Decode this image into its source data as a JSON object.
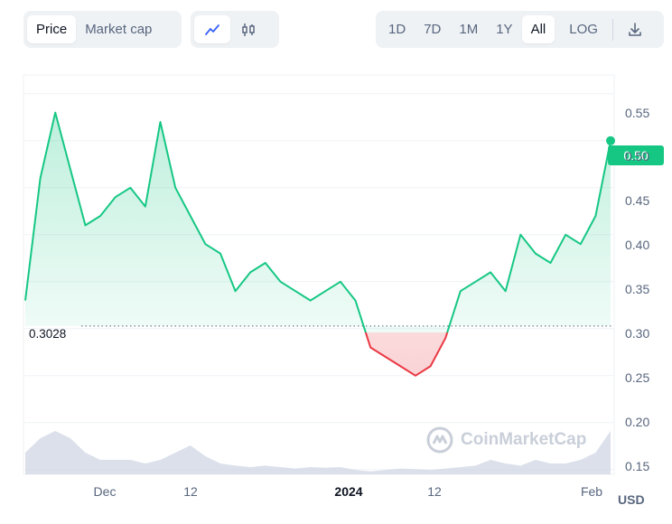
{
  "toolbar": {
    "metric_tabs": [
      "Price",
      "Market cap"
    ],
    "metric_active": "Price",
    "chart_type_icons": [
      "line-chart-icon",
      "candlestick-icon"
    ],
    "range_tabs": [
      "1D",
      "7D",
      "1M",
      "1Y",
      "All"
    ],
    "range_active": "All",
    "log_label": "LOG",
    "download_icon": "download-icon"
  },
  "colors": {
    "up": "#16c784",
    "down": "#ea3943",
    "volume": "#cfd6e4",
    "grid": "#eff2f5",
    "text": "#58667e"
  },
  "chart_data": {
    "type": "area",
    "series_price": {
      "x": [
        "Nov 17",
        "Nov 19",
        "Nov 21",
        "Nov 23",
        "Nov 25",
        "Nov 27",
        "Nov 29",
        "Dec 1",
        "Dec 3",
        "Dec 5",
        "Dec 7",
        "Dec 9",
        "Dec 11",
        "Dec 13",
        "Dec 15",
        "Dec 17",
        "Dec 19",
        "Dec 21",
        "Dec 23",
        "Dec 25",
        "Dec 27",
        "Dec 29",
        "Dec 31",
        "Jan 2",
        "Jan 4",
        "Jan 6",
        "Jan 8",
        "Jan 10",
        "Jan 12",
        "Jan 14",
        "Jan 16",
        "Jan 18",
        "Jan 20",
        "Jan 22",
        "Jan 24",
        "Jan 26",
        "Jan 28",
        "Jan 30",
        "Feb 1",
        "Feb 3"
      ],
      "values": [
        0.33,
        0.46,
        0.53,
        0.47,
        0.41,
        0.42,
        0.44,
        0.45,
        0.43,
        0.52,
        0.45,
        0.42,
        0.39,
        0.38,
        0.34,
        0.36,
        0.37,
        0.35,
        0.34,
        0.33,
        0.34,
        0.35,
        0.33,
        0.28,
        0.27,
        0.26,
        0.25,
        0.26,
        0.29,
        0.34,
        0.35,
        0.36,
        0.34,
        0.4,
        0.38,
        0.37,
        0.4,
        0.39,
        0.42,
        0.5
      ]
    },
    "series_volume": {
      "values": [
        0.03,
        0.05,
        0.06,
        0.05,
        0.03,
        0.02,
        0.02,
        0.02,
        0.015,
        0.02,
        0.03,
        0.04,
        0.025,
        0.015,
        0.012,
        0.01,
        0.012,
        0.01,
        0.008,
        0.01,
        0.009,
        0.01,
        0.006,
        0.004,
        0.006,
        0.008,
        0.007,
        0.006,
        0.008,
        0.01,
        0.012,
        0.02,
        0.015,
        0.012,
        0.02,
        0.015,
        0.015,
        0.02,
        0.03,
        0.06
      ]
    },
    "reference_line": 0.3028,
    "ylim": [
      0.145,
      0.57
    ],
    "yticks": [
      "0.55",
      "0.50",
      "0.45",
      "0.40",
      "0.35",
      "0.30",
      "0.25",
      "0.20",
      "0.15"
    ],
    "xticks": [
      {
        "label": "Dec",
        "bold": false,
        "x": "Dec 1"
      },
      {
        "label": "12",
        "bold": false,
        "x": "Dec 12"
      },
      {
        "label": "2024",
        "bold": true,
        "x": "Jan 1"
      },
      {
        "label": "12",
        "bold": false,
        "x": "Jan 12"
      },
      {
        "label": "Feb",
        "bold": false,
        "x": "Feb 1"
      }
    ],
    "current_price": "0.50",
    "currency": "USD",
    "grid": true,
    "watermark": "CoinMarketCap"
  }
}
